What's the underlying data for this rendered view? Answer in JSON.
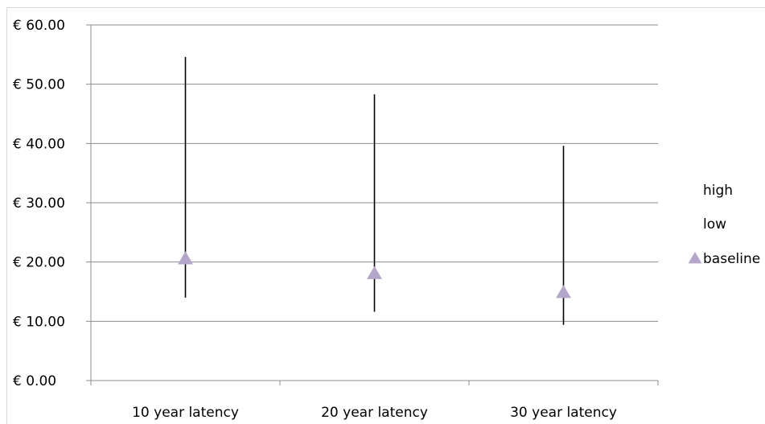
{
  "chart_data": {
    "type": "scatter",
    "variant": "high-low-baseline",
    "categories": [
      "10 year latency",
      "20 year latency",
      "30 year latency"
    ],
    "series": [
      {
        "name": "high",
        "values": [
          54.6,
          48.3,
          39.6
        ]
      },
      {
        "name": "low",
        "values": [
          14.0,
          11.6,
          9.4
        ]
      },
      {
        "name": "baseline",
        "values": [
          20.6,
          18.1,
          14.9
        ]
      }
    ],
    "ylim": [
      0,
      60
    ],
    "yticks": [
      0,
      10,
      20,
      30,
      40,
      50,
      60
    ],
    "ytick_labels": [
      "€ 0.00",
      "€ 10.00",
      "€ 20.00",
      "€ 30.00",
      "€ 40.00",
      "€ 50.00",
      "€ 60.00"
    ],
    "grid": true,
    "legend_position": "right",
    "colors": {
      "baseline_marker": "#b3a6c8",
      "gridline": "#8c8c8c",
      "range_line": "#000000"
    }
  }
}
